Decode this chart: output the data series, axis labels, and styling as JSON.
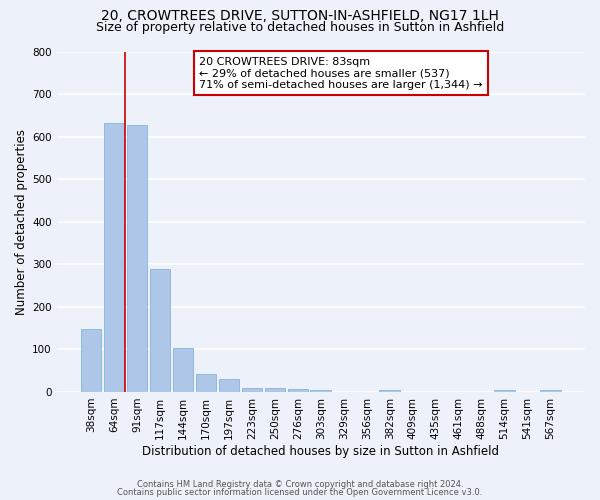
{
  "title1": "20, CROWTREES DRIVE, SUTTON-IN-ASHFIELD, NG17 1LH",
  "title2": "Size of property relative to detached houses in Sutton in Ashfield",
  "xlabel": "Distribution of detached houses by size in Sutton in Ashfield",
  "ylabel": "Number of detached properties",
  "categories": [
    "38sqm",
    "64sqm",
    "91sqm",
    "117sqm",
    "144sqm",
    "170sqm",
    "197sqm",
    "223sqm",
    "250sqm",
    "276sqm",
    "303sqm",
    "329sqm",
    "356sqm",
    "382sqm",
    "409sqm",
    "435sqm",
    "461sqm",
    "488sqm",
    "514sqm",
    "541sqm",
    "567sqm"
  ],
  "values": [
    148,
    632,
    627,
    288,
    103,
    43,
    30,
    10,
    10,
    8,
    5,
    0,
    0,
    5,
    0,
    0,
    0,
    0,
    5,
    0,
    5
  ],
  "bar_color": "#aec6e8",
  "bar_edge_color": "#7aadd4",
  "vline_color": "#cc0000",
  "vline_pos": 1.5,
  "annotation_box_text": "20 CROWTREES DRIVE: 83sqm\n← 29% of detached houses are smaller (537)\n71% of semi-detached houses are larger (1,344) →",
  "annotation_box_color": "#ffffff",
  "annotation_box_edge_color": "#cc0000",
  "ylim": [
    0,
    800
  ],
  "yticks": [
    0,
    100,
    200,
    300,
    400,
    500,
    600,
    700,
    800
  ],
  "footer1": "Contains HM Land Registry data © Crown copyright and database right 2024.",
  "footer2": "Contains public sector information licensed under the Open Government Licence v3.0.",
  "bg_color": "#edf1f9",
  "plot_bg_color": "#edf1f9",
  "grid_color": "#ffffff",
  "title_fontsize": 10,
  "subtitle_fontsize": 9,
  "axis_label_fontsize": 8.5,
  "tick_fontsize": 7.5,
  "footer_fontsize": 6,
  "annotation_fontsize": 8
}
